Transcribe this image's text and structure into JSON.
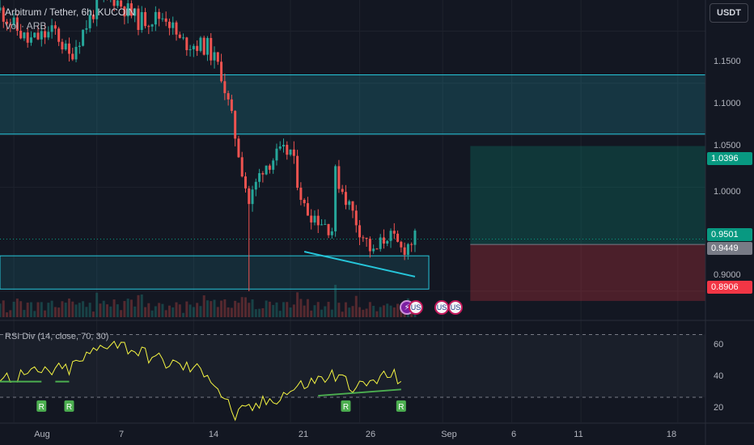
{
  "header": {
    "symbol": "Arbitrum / Tether, 6h, KUCOIN",
    "volume_label": "Vol · ARB",
    "currency_button": "USDT"
  },
  "rsi_panel": {
    "label": "RSI Div (14, close, 70, 30)",
    "levels": [
      70,
      30
    ],
    "ticks": [
      "60",
      "40",
      "20"
    ],
    "divergence_marker": "R"
  },
  "price_axis": {
    "ticks": [
      "1.1500",
      "1.1000",
      "1.0500",
      "1.0000",
      "0.9000"
    ]
  },
  "price_tags": [
    {
      "label": "1.0396",
      "color": "#089981"
    },
    {
      "label": "0.9501",
      "color": "#089981"
    },
    {
      "label": "0.9449",
      "color": "#787b86"
    },
    {
      "label": "0.8906",
      "color": "#f23645"
    }
  ],
  "time_axis": {
    "ticks": [
      {
        "label": "Aug",
        "bold": true
      },
      {
        "label": "7",
        "bold": false
      },
      {
        "label": "14",
        "bold": false
      },
      {
        "label": "21",
        "bold": false
      },
      {
        "label": "26",
        "bold": false
      },
      {
        "label": "Sep",
        "bold": true
      },
      {
        "label": "6",
        "bold": false
      },
      {
        "label": "11",
        "bold": false
      },
      {
        "label": "18",
        "bold": false
      }
    ]
  },
  "events": [
    {
      "type": "bolt-icon",
      "symbol": "⚡"
    },
    {
      "type": "us-flag-icon",
      "symbol": "US"
    },
    {
      "type": "us-flag-icon",
      "symbol": "US"
    },
    {
      "type": "us-flag-icon",
      "symbol": "US"
    }
  ],
  "colors": {
    "background": "#131722",
    "up": "#26a69a",
    "down": "#ef5350",
    "zone": "#26c6da",
    "rsi_line": "#f5f542",
    "divergence": "#4caf50"
  },
  "chart_data": {
    "type": "candlestick",
    "title": "Arbitrum / Tether, 6h, KUCOIN",
    "x_range": [
      "Jul 31",
      "Sep 20"
    ],
    "price_range": [
      0.875,
      1.18
    ],
    "supply_zone": [
      1.051,
      1.108
    ],
    "demand_zone": [
      0.902,
      0.934
    ],
    "long_position": {
      "entry": 0.9449,
      "target": 1.0396,
      "stop": 0.8906
    },
    "last_price": 0.9501,
    "path": [
      [
        "Jul 31",
        1.17
      ],
      [
        "Aug 2",
        1.14
      ],
      [
        "Aug 4",
        1.15
      ],
      [
        "Aug 5",
        1.125
      ],
      [
        "Aug 7",
        1.175
      ],
      [
        "Aug 8",
        1.185
      ],
      [
        "Aug 10",
        1.16
      ],
      [
        "Aug 12",
        1.165
      ],
      [
        "Aug 13",
        1.14
      ],
      [
        "Aug 15",
        1.135
      ],
      [
        "Aug 16",
        1.11
      ],
      [
        "Aug 17",
        1.05
      ],
      [
        "Aug 18",
        0.985
      ],
      [
        "Aug 19",
        1.02
      ],
      [
        "Aug 20",
        1.03
      ],
      [
        "Aug 21",
        1.035
      ],
      [
        "Aug 22",
        0.98
      ],
      [
        "Aug 24",
        0.96
      ],
      [
        "Aug 24",
        1.02
      ],
      [
        "Aug 26",
        0.96
      ],
      [
        "Aug 27",
        0.935
      ],
      [
        "Aug 28",
        0.955
      ],
      [
        "Aug 29",
        0.94
      ],
      [
        "Aug 30",
        0.95
      ]
    ],
    "rsi": {
      "levels": [
        70,
        30
      ],
      "y_range": [
        14,
        78
      ],
      "values": [
        [
          "Jul 31",
          42
        ],
        [
          "Aug 5",
          48
        ],
        [
          "Aug 8",
          66
        ],
        [
          "Aug 12",
          52
        ],
        [
          "Aug 15",
          46
        ],
        [
          "Aug 17",
          18
        ],
        [
          "Aug 20",
          30
        ],
        [
          "Aug 22",
          38
        ],
        [
          "Aug 24",
          44
        ],
        [
          "Aug 26",
          36
        ],
        [
          "Aug 28",
          44
        ],
        [
          "Aug 29",
          42
        ]
      ]
    }
  }
}
